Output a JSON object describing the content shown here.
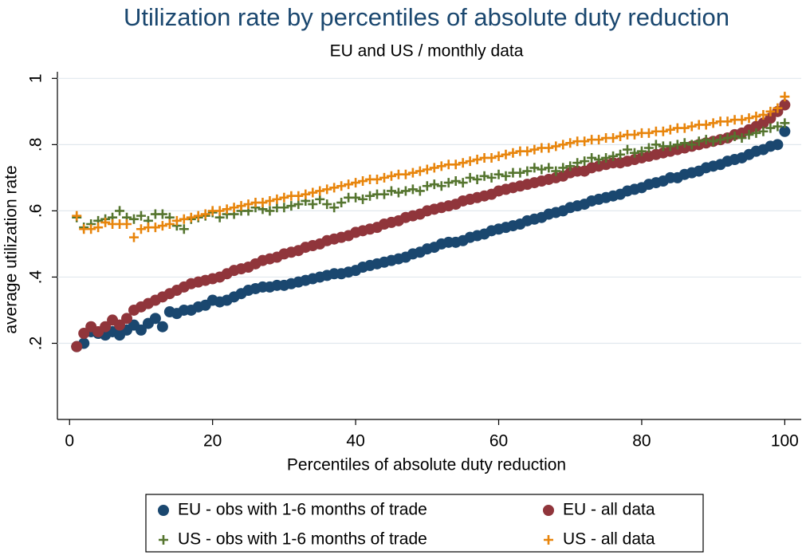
{
  "chart_data": {
    "type": "scatter",
    "title": "Utilization rate by percentiles of absolute duty reduction",
    "subtitle": "EU and US / monthly data",
    "x_label": "Percentiles of absolute duty reduction",
    "y_label": "average utilization rate",
    "xlim": [
      -1.7,
      102.3
    ],
    "ylim": [
      -0.03,
      1.02
    ],
    "xticks": [
      0,
      20,
      40,
      60,
      80,
      100
    ],
    "yticks": [
      {
        "value": 0.2,
        "label": ".2"
      },
      {
        "value": 0.4,
        "label": ".4"
      },
      {
        "value": 0.6,
        "label": ".6"
      },
      {
        "value": 0.8,
        "label": ".8"
      },
      {
        "value": 1,
        "label": "1"
      }
    ],
    "grid": true,
    "legend": "bottom",
    "x": [
      1,
      2,
      3,
      4,
      5,
      6,
      7,
      8,
      9,
      10,
      11,
      12,
      13,
      14,
      15,
      16,
      17,
      18,
      19,
      20,
      21,
      22,
      23,
      24,
      25,
      26,
      27,
      28,
      29,
      30,
      31,
      32,
      33,
      34,
      35,
      36,
      37,
      38,
      39,
      40,
      41,
      42,
      43,
      44,
      45,
      46,
      47,
      48,
      49,
      50,
      51,
      52,
      53,
      54,
      55,
      56,
      57,
      58,
      59,
      60,
      61,
      62,
      63,
      64,
      65,
      66,
      67,
      68,
      69,
      70,
      71,
      72,
      73,
      74,
      75,
      76,
      77,
      78,
      79,
      80,
      81,
      82,
      83,
      84,
      85,
      86,
      87,
      88,
      89,
      90,
      91,
      92,
      93,
      94,
      95,
      96,
      97,
      98,
      99,
      100
    ],
    "series": [
      {
        "name": "EU - obs with 1-6 months of trade",
        "color": "#1a476f",
        "marker": "circle",
        "values": [
          0.19,
          0.2,
          0.235,
          0.23,
          0.225,
          0.235,
          0.225,
          0.24,
          0.255,
          0.24,
          0.26,
          0.275,
          0.25,
          0.295,
          0.29,
          0.3,
          0.3,
          0.31,
          0.315,
          0.33,
          0.325,
          0.33,
          0.34,
          0.35,
          0.36,
          0.365,
          0.37,
          0.37,
          0.375,
          0.375,
          0.38,
          0.385,
          0.39,
          0.395,
          0.4,
          0.405,
          0.41,
          0.41,
          0.415,
          0.42,
          0.43,
          0.435,
          0.44,
          0.445,
          0.45,
          0.455,
          0.46,
          0.47,
          0.475,
          0.485,
          0.49,
          0.5,
          0.505,
          0.505,
          0.51,
          0.52,
          0.525,
          0.53,
          0.54,
          0.545,
          0.55,
          0.555,
          0.56,
          0.57,
          0.575,
          0.58,
          0.59,
          0.595,
          0.6,
          0.61,
          0.615,
          0.62,
          0.63,
          0.635,
          0.64,
          0.645,
          0.65,
          0.66,
          0.665,
          0.67,
          0.68,
          0.685,
          0.69,
          0.7,
          0.7,
          0.71,
          0.715,
          0.72,
          0.73,
          0.735,
          0.74,
          0.75,
          0.755,
          0.76,
          0.77,
          0.78,
          0.785,
          0.795,
          0.8,
          0.84
        ]
      },
      {
        "name": "EU - all data",
        "color": "#90353b",
        "marker": "circle",
        "values": [
          0.19,
          0.23,
          0.25,
          0.235,
          0.25,
          0.27,
          0.255,
          0.275,
          0.3,
          0.31,
          0.32,
          0.33,
          0.34,
          0.35,
          0.36,
          0.37,
          0.38,
          0.385,
          0.39,
          0.395,
          0.4,
          0.41,
          0.42,
          0.425,
          0.43,
          0.44,
          0.45,
          0.455,
          0.46,
          0.47,
          0.475,
          0.48,
          0.49,
          0.495,
          0.5,
          0.51,
          0.515,
          0.52,
          0.525,
          0.535,
          0.54,
          0.545,
          0.55,
          0.56,
          0.565,
          0.57,
          0.58,
          0.585,
          0.59,
          0.6,
          0.605,
          0.61,
          0.615,
          0.62,
          0.63,
          0.635,
          0.64,
          0.645,
          0.65,
          0.66,
          0.665,
          0.67,
          0.675,
          0.68,
          0.685,
          0.69,
          0.695,
          0.7,
          0.705,
          0.715,
          0.72,
          0.72,
          0.73,
          0.735,
          0.74,
          0.745,
          0.745,
          0.75,
          0.755,
          0.76,
          0.765,
          0.77,
          0.775,
          0.78,
          0.785,
          0.79,
          0.795,
          0.8,
          0.805,
          0.81,
          0.815,
          0.82,
          0.83,
          0.835,
          0.845,
          0.855,
          0.865,
          0.88,
          0.9,
          0.92
        ]
      },
      {
        "name": "US - obs with 1-6 months of trade",
        "color": "#55752f",
        "marker": "plus",
        "values": [
          0.58,
          0.55,
          0.56,
          0.57,
          0.575,
          0.58,
          0.6,
          0.58,
          0.575,
          0.585,
          0.57,
          0.59,
          0.59,
          0.58,
          0.555,
          0.545,
          0.575,
          0.58,
          0.585,
          0.595,
          0.58,
          0.59,
          0.59,
          0.6,
          0.6,
          0.61,
          0.605,
          0.6,
          0.61,
          0.61,
          0.615,
          0.62,
          0.63,
          0.62,
          0.635,
          0.62,
          0.61,
          0.625,
          0.64,
          0.64,
          0.635,
          0.645,
          0.65,
          0.65,
          0.66,
          0.655,
          0.66,
          0.665,
          0.66,
          0.675,
          0.68,
          0.675,
          0.685,
          0.69,
          0.685,
          0.7,
          0.695,
          0.705,
          0.7,
          0.71,
          0.705,
          0.715,
          0.715,
          0.72,
          0.73,
          0.725,
          0.73,
          0.72,
          0.73,
          0.735,
          0.745,
          0.75,
          0.76,
          0.755,
          0.76,
          0.765,
          0.77,
          0.785,
          0.775,
          0.78,
          0.79,
          0.8,
          0.795,
          0.795,
          0.8,
          0.805,
          0.8,
          0.81,
          0.815,
          0.81,
          0.815,
          0.82,
          0.825,
          0.82,
          0.83,
          0.835,
          0.84,
          0.85,
          0.855,
          0.865
        ]
      },
      {
        "name": "US - all data",
        "color": "#e8850c",
        "marker": "plus",
        "values": [
          0.585,
          0.545,
          0.545,
          0.55,
          0.565,
          0.56,
          0.56,
          0.56,
          0.52,
          0.545,
          0.55,
          0.55,
          0.555,
          0.56,
          0.57,
          0.575,
          0.58,
          0.585,
          0.59,
          0.6,
          0.6,
          0.605,
          0.61,
          0.615,
          0.62,
          0.625,
          0.625,
          0.63,
          0.635,
          0.64,
          0.645,
          0.645,
          0.65,
          0.655,
          0.66,
          0.665,
          0.67,
          0.675,
          0.68,
          0.685,
          0.69,
          0.695,
          0.695,
          0.7,
          0.705,
          0.71,
          0.71,
          0.715,
          0.72,
          0.725,
          0.73,
          0.735,
          0.74,
          0.74,
          0.745,
          0.75,
          0.755,
          0.76,
          0.76,
          0.765,
          0.77,
          0.775,
          0.78,
          0.78,
          0.785,
          0.79,
          0.79,
          0.795,
          0.8,
          0.805,
          0.81,
          0.81,
          0.815,
          0.815,
          0.82,
          0.82,
          0.825,
          0.83,
          0.83,
          0.835,
          0.835,
          0.84,
          0.84,
          0.845,
          0.85,
          0.85,
          0.855,
          0.86,
          0.86,
          0.865,
          0.87,
          0.87,
          0.875,
          0.875,
          0.88,
          0.885,
          0.89,
          0.9,
          0.91,
          0.945
        ]
      }
    ]
  }
}
